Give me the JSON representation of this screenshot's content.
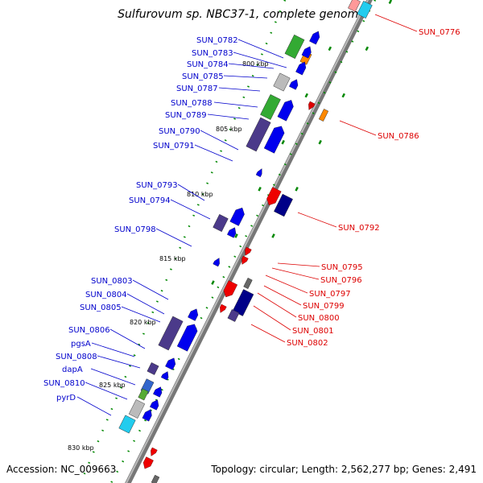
{
  "title": "Sulfurovum sp. NBC37-1, complete genome",
  "footer": {
    "accession": "Accession: NC_009663",
    "topology": "Topology: circular; Length: 2,562,277 bp; Genes: 2,491"
  },
  "colors": {
    "forward_label": "#0000cc",
    "reverse_label": "#dd0000",
    "backbone_dark": "#777777",
    "backbone_light": "#bbbbbb",
    "tick": "#008800"
  },
  "ticks": [
    "800 kbp",
    "805 kbp",
    "810 kbp",
    "815 kbp",
    "820 kbp",
    "825 kbp",
    "830 kbp"
  ],
  "forward_labels": [
    "SUN_0782",
    "SUN_0783",
    "SUN_0784",
    "SUN_0785",
    "SUN_0787",
    "SUN_0788",
    "SUN_0789",
    "SUN_0790",
    "SUN_0791",
    "SUN_0793",
    "SUN_0794",
    "SUN_0798",
    "SUN_0803",
    "SUN_0804",
    "SUN_0805",
    "SUN_0806",
    "pgsA",
    "SUN_0808",
    "dapA",
    "SUN_0810",
    "pyrD"
  ],
  "reverse_labels": [
    "SUN_0776",
    "SUN_0786",
    "SUN_0792",
    "SUN_0795",
    "SUN_0796",
    "SUN_0797",
    "SUN_0799",
    "SUN_0800",
    "SUN_0801",
    "SUN_0802"
  ]
}
